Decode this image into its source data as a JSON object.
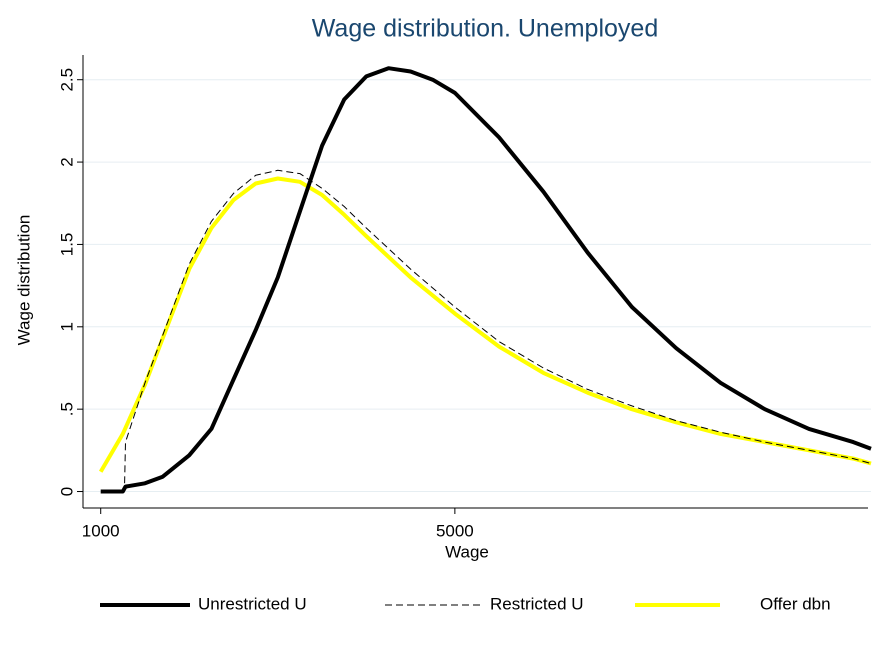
{
  "chart_data": {
    "type": "line",
    "title": "Wage distribution. Unemployed",
    "x_label": "Wage",
    "y_label": "Wage distribution",
    "xlim": [
      800,
      9700
    ],
    "xticks": [
      1000,
      5000
    ],
    "ylim": [
      -0.1,
      2.65
    ],
    "yticks": [
      0,
      {
        "value": 0.5,
        "label": ".5"
      },
      1,
      1.5,
      2,
      2.5
    ],
    "grid": true,
    "legend": "bottom",
    "series": [
      {
        "name": "Unrestricted U",
        "color": "#000000",
        "dash": "solid",
        "x": [
          1000,
          1250,
          1280,
          1500,
          1700,
          2000,
          2250,
          2500,
          2750,
          3000,
          3250,
          3500,
          3750,
          4000,
          4250,
          4500,
          4750,
          5000,
          5500,
          6000,
          6500,
          7000,
          7500,
          8000,
          8500,
          9000,
          9500,
          9700
        ],
        "values": [
          0,
          0,
          0.03,
          0.05,
          0.09,
          0.22,
          0.38,
          0.68,
          0.98,
          1.3,
          1.7,
          2.1,
          2.38,
          2.52,
          2.57,
          2.55,
          2.5,
          2.42,
          2.15,
          1.82,
          1.45,
          1.12,
          0.87,
          0.66,
          0.5,
          0.38,
          0.3,
          0.26
        ]
      },
      {
        "name": "Restricted U",
        "color": "#000000",
        "dash": "dashed",
        "x": [
          1270,
          1280,
          1500,
          1750,
          2000,
          2250,
          2500,
          2750,
          3000,
          3250,
          3500,
          3750,
          4000,
          4500,
          5000,
          5500,
          6000,
          6500,
          7000,
          7500,
          8000,
          8500,
          9000,
          9500,
          9700
        ],
        "values": [
          0.05,
          0.3,
          0.66,
          1.02,
          1.38,
          1.64,
          1.81,
          1.92,
          1.95,
          1.93,
          1.84,
          1.73,
          1.6,
          1.35,
          1.12,
          0.91,
          0.75,
          0.62,
          0.52,
          0.43,
          0.36,
          0.3,
          0.25,
          0.2,
          0.17
        ]
      },
      {
        "name": "Offer dbn",
        "color": "#ffff00",
        "dash": "solid",
        "x": [
          1000,
          1250,
          1500,
          1750,
          2000,
          2250,
          2500,
          2750,
          3000,
          3250,
          3500,
          3750,
          4000,
          4500,
          5000,
          5500,
          6000,
          6500,
          7000,
          7500,
          8000,
          8500,
          9000,
          9500,
          9700
        ],
        "values": [
          0.12,
          0.35,
          0.65,
          1.0,
          1.35,
          1.6,
          1.77,
          1.87,
          1.9,
          1.88,
          1.8,
          1.68,
          1.55,
          1.3,
          1.08,
          0.88,
          0.72,
          0.6,
          0.5,
          0.42,
          0.35,
          0.3,
          0.25,
          0.2,
          0.17
        ]
      }
    ]
  }
}
